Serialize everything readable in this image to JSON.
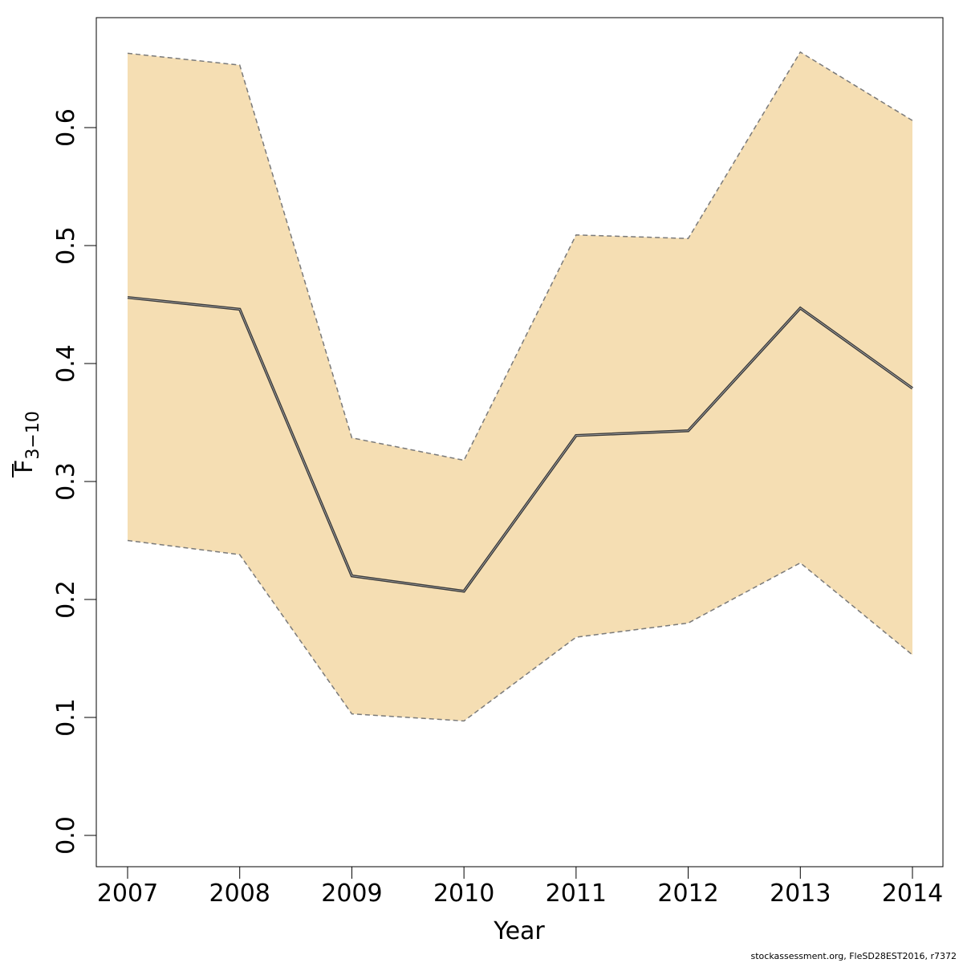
{
  "chart_data": {
    "type": "line",
    "xlabel": "Year",
    "ylabel": {
      "base": "F",
      "subscript": "3−10"
    },
    "x": [
      2007,
      2008,
      2009,
      2010,
      2011,
      2012,
      2013,
      2014
    ],
    "x_ticks": [
      "2007",
      "2008",
      "2009",
      "2010",
      "2011",
      "2012",
      "2013",
      "2014"
    ],
    "y_ticks": [
      "0.0",
      "0.1",
      "0.2",
      "0.3",
      "0.4",
      "0.5",
      "0.6"
    ],
    "ylim": [
      -0.026,
      0.69
    ],
    "grid": false,
    "series": [
      {
        "role": "estimate",
        "values": [
          0.456,
          0.446,
          0.22,
          0.207,
          0.339,
          0.343,
          0.447,
          0.379
        ]
      },
      {
        "role": "upper",
        "values": [
          0.663,
          0.653,
          0.337,
          0.318,
          0.509,
          0.506,
          0.664,
          0.606
        ]
      },
      {
        "role": "lower",
        "values": [
          0.25,
          0.238,
          0.103,
          0.097,
          0.168,
          0.18,
          0.231,
          0.153
        ]
      }
    ],
    "colors": {
      "band_fill": "#F5DEB3",
      "bound_line": "#7a7a7a",
      "estimate_line": "#3a3a3a"
    }
  },
  "footer": "stockassessment.org, FleSD28EST2016, r7372"
}
